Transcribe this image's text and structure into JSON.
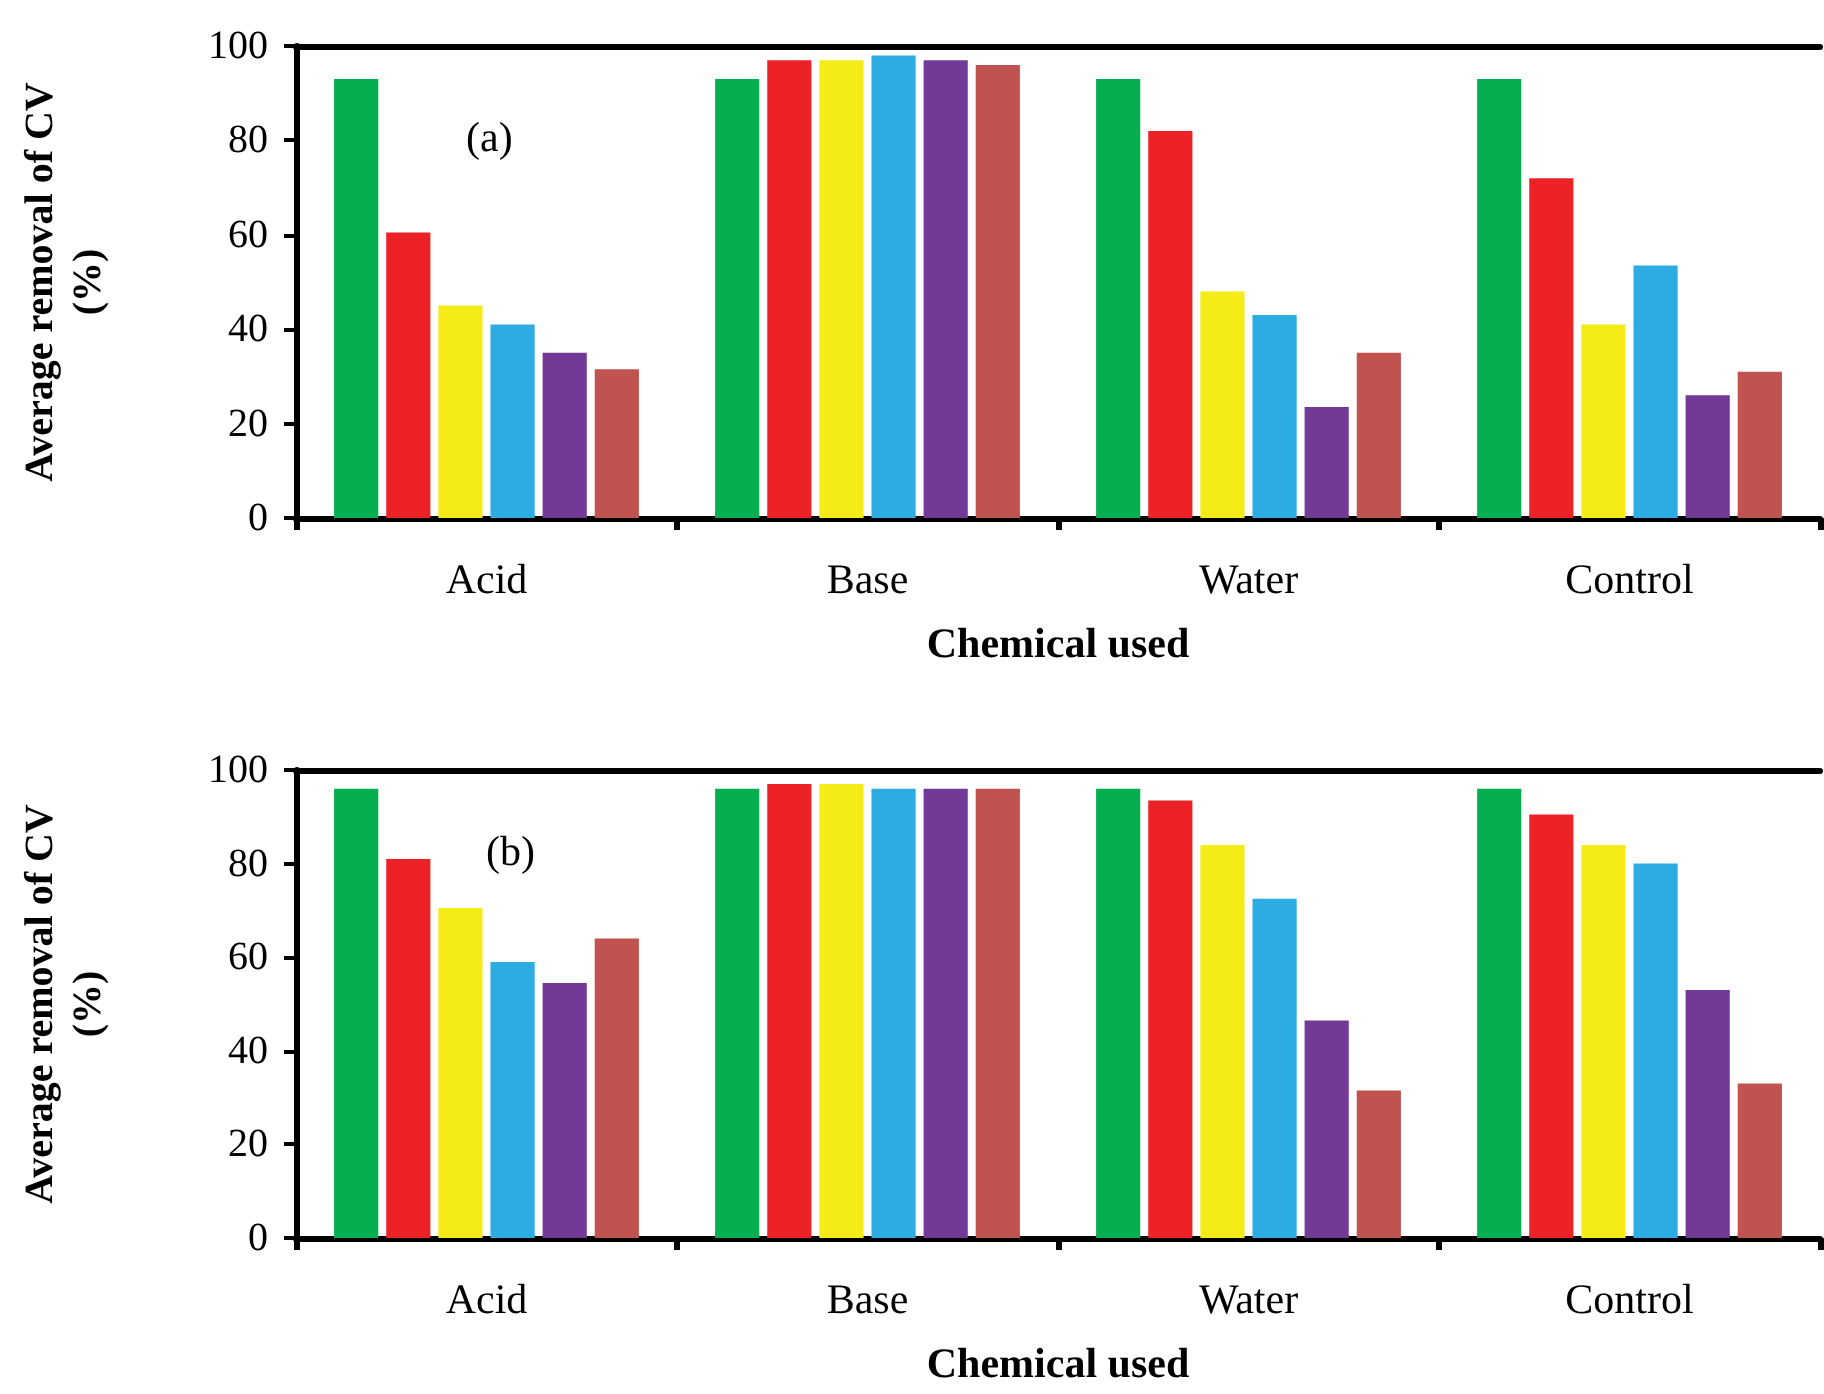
{
  "chart_data": [
    {
      "type": "bar",
      "xlabel": "Chemical used",
      "ylabel": "Average removal of CV\n(%)",
      "annotations": [
        "(a)"
      ],
      "categories": [
        "Acid",
        "Base",
        "Water",
        "Control"
      ],
      "ylim": [
        0,
        100
      ],
      "yticks": [
        0,
        20,
        40,
        60,
        80,
        100
      ],
      "series": [
        {
          "color": "#05ae4e",
          "values": [
            93,
            93,
            93,
            93
          ]
        },
        {
          "color": "#ed2227",
          "values": [
            60.5,
            97,
            82,
            72
          ]
        },
        {
          "color": "#f5eb17",
          "values": [
            45,
            97,
            48,
            41
          ]
        },
        {
          "color": "#2dabe3",
          "values": [
            41,
            98,
            43,
            53.5
          ]
        },
        {
          "color": "#723a96",
          "values": [
            35,
            97,
            23.5,
            26
          ]
        },
        {
          "color": "#c0524f",
          "values": [
            31.5,
            96,
            35,
            31
          ]
        }
      ]
    },
    {
      "type": "bar",
      "xlabel": "Chemical used",
      "ylabel": "Average removal of CV\n(%)",
      "annotations": [
        "(b)"
      ],
      "categories": [
        "Acid",
        "Base",
        "Water",
        "Control"
      ],
      "ylim": [
        0,
        100
      ],
      "yticks": [
        0,
        20,
        40,
        60,
        80,
        100
      ],
      "series": [
        {
          "color": "#05ae4e",
          "values": [
            96,
            96,
            96,
            96
          ]
        },
        {
          "color": "#ed2227",
          "values": [
            81,
            97,
            93.5,
            90.5
          ]
        },
        {
          "color": "#f5eb17",
          "values": [
            70.5,
            97,
            84,
            84
          ]
        },
        {
          "color": "#2dabe3",
          "values": [
            59,
            96,
            72.5,
            80
          ]
        },
        {
          "color": "#723a96",
          "values": [
            54.5,
            96,
            46.5,
            53
          ]
        },
        {
          "color": "#c0524f",
          "values": [
            64,
            96,
            31.5,
            33
          ]
        }
      ]
    }
  ]
}
